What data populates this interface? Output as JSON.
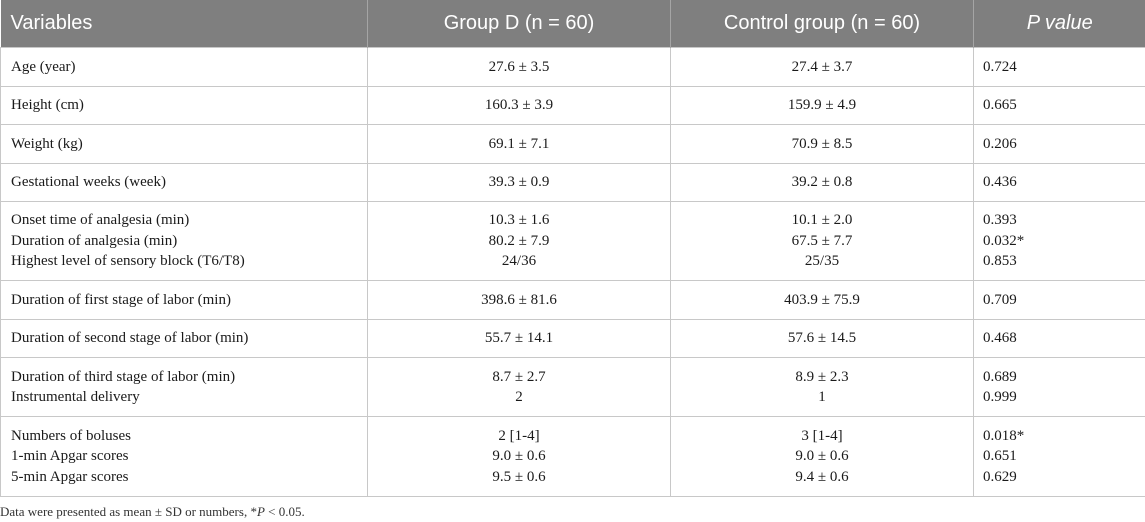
{
  "table": {
    "headers": {
      "variables": "Variables",
      "group_d": "Group D (n = 60)",
      "control": "Control group (n = 60)",
      "p_value": "P value"
    },
    "rows": [
      {
        "variables": [
          "Age (year)"
        ],
        "group_d": [
          "27.6 ± 3.5"
        ],
        "control": [
          "27.4 ± 3.7"
        ],
        "p": [
          "0.724"
        ]
      },
      {
        "variables": [
          "Height (cm)"
        ],
        "group_d": [
          "160.3 ± 3.9"
        ],
        "control": [
          "159.9 ± 4.9"
        ],
        "p": [
          "0.665"
        ]
      },
      {
        "variables": [
          "Weight (kg)"
        ],
        "group_d": [
          "69.1 ± 7.1"
        ],
        "control": [
          "70.9 ± 8.5"
        ],
        "p": [
          "0.206"
        ]
      },
      {
        "variables": [
          "Gestational weeks (week)"
        ],
        "group_d": [
          "39.3 ± 0.9"
        ],
        "control": [
          "39.2 ± 0.8"
        ],
        "p": [
          "0.436"
        ]
      },
      {
        "variables": [
          "Onset time of analgesia (min)",
          "Duration of analgesia (min)",
          "Highest level of sensory block (T6/T8)"
        ],
        "group_d": [
          "10.3 ± 1.6",
          "80.2 ± 7.9",
          "24/36"
        ],
        "control": [
          "10.1 ± 2.0",
          "67.5 ± 7.7",
          "25/35"
        ],
        "p": [
          "0.393",
          "0.032*",
          "0.853"
        ]
      },
      {
        "variables": [
          "Duration of first stage of labor (min)"
        ],
        "group_d": [
          "398.6 ± 81.6"
        ],
        "control": [
          "403.9 ± 75.9"
        ],
        "p": [
          "0.709"
        ]
      },
      {
        "variables": [
          "Duration of second stage of labor (min)"
        ],
        "group_d": [
          "55.7 ± 14.1"
        ],
        "control": [
          "57.6 ± 14.5"
        ],
        "p": [
          "0.468"
        ]
      },
      {
        "variables": [
          "Duration of third stage of labor (min)",
          "Instrumental delivery"
        ],
        "group_d": [
          "8.7 ± 2.7",
          "2"
        ],
        "control": [
          "8.9 ± 2.3",
          "1"
        ],
        "p": [
          "0.689",
          "0.999"
        ]
      },
      {
        "variables": [
          "Numbers of boluses",
          "1-min Apgar scores",
          "5-min Apgar scores"
        ],
        "group_d": [
          "2 [1-4]",
          "9.0 ± 0.6",
          "9.5 ± 0.6"
        ],
        "control": [
          "3 [1-4]",
          "9.0 ± 0.6",
          "9.4 ± 0.6"
        ],
        "p": [
          "0.018*",
          "0.651",
          "0.629"
        ]
      }
    ]
  },
  "footnote": {
    "prefix": "Data were presented as mean ± SD or numbers, *",
    "p_symbol": "P",
    "suffix": " < 0.05."
  }
}
